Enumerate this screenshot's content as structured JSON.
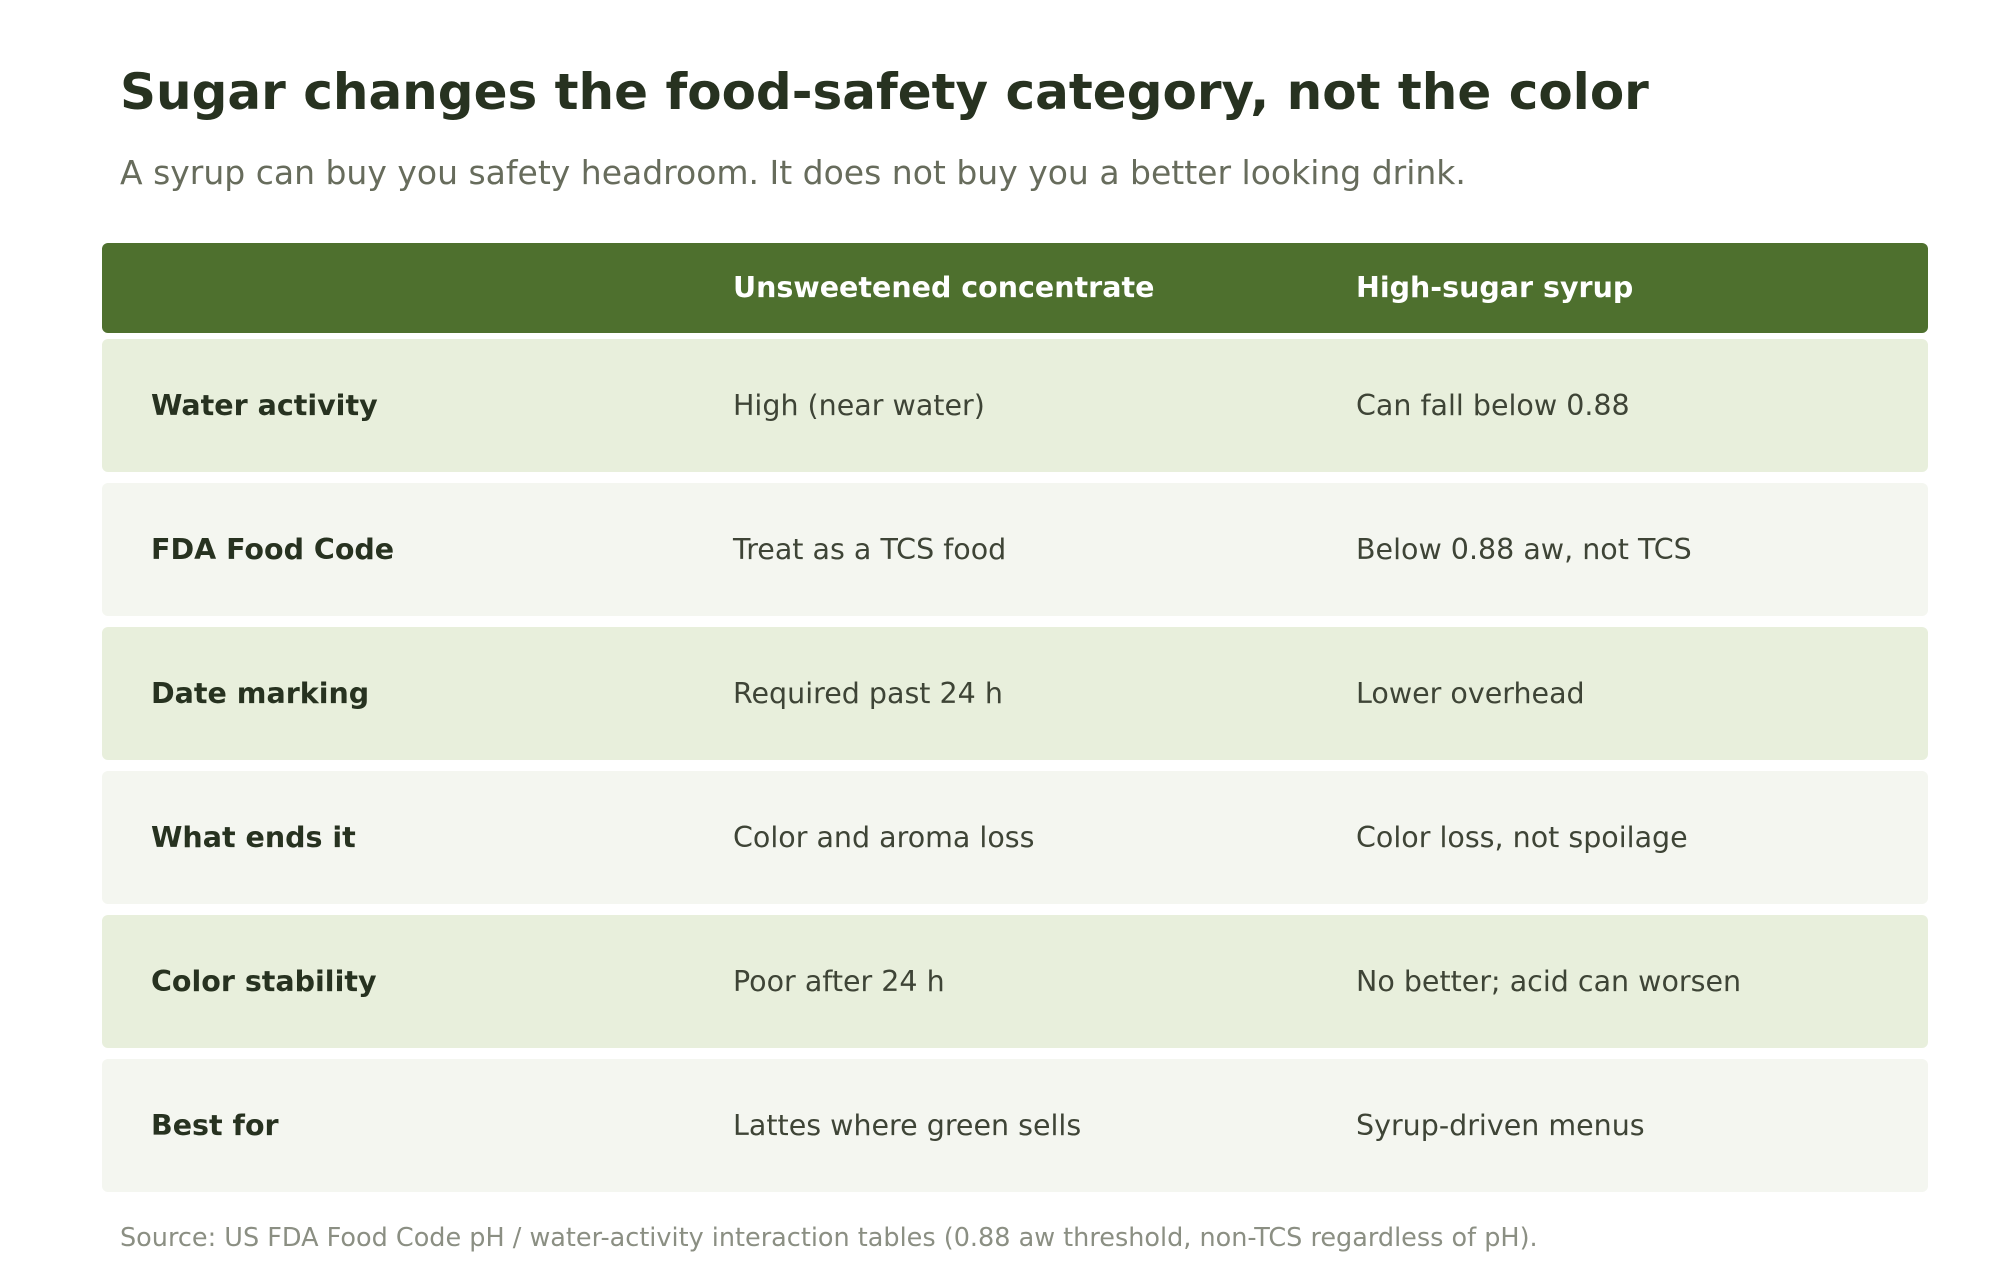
{
  "title": "Sugar changes the food-safety category, not the color",
  "subtitle": "A syrup can buy you safety headroom. It does not buy you a better looking drink.",
  "table": {
    "columns": [
      "",
      "Unsweetened concentrate",
      "High-sugar syrup"
    ],
    "rows": [
      {
        "label": "Water activity",
        "a": "High (near water)",
        "b": "Can fall below 0.88"
      },
      {
        "label": "FDA Food Code",
        "a": "Treat as a TCS food",
        "b": "Below 0.88 aw, not TCS"
      },
      {
        "label": "Date marking",
        "a": "Required past 24 h",
        "b": "Lower overhead"
      },
      {
        "label": "What ends it",
        "a": "Color and aroma loss",
        "b": "Color loss, not spoilage"
      },
      {
        "label": "Color stability",
        "a": "Poor after 24 h",
        "b": "No better; acid can worsen"
      },
      {
        "label": "Best for",
        "a": "Lattes where green sells",
        "b": "Syrup-driven menus"
      }
    ]
  },
  "source": "Source: US FDA Food Code pH / water-activity interaction tables (0.88 aw threshold, non-TCS regardless of pH).",
  "colors": {
    "header_bg": "#4e702e",
    "row_even_bg": "#e8efdc",
    "row_odd_bg": "#f4f6f0",
    "title_text": "#273220",
    "subtitle_text": "#676c5c",
    "source_text": "#8b8f83"
  }
}
